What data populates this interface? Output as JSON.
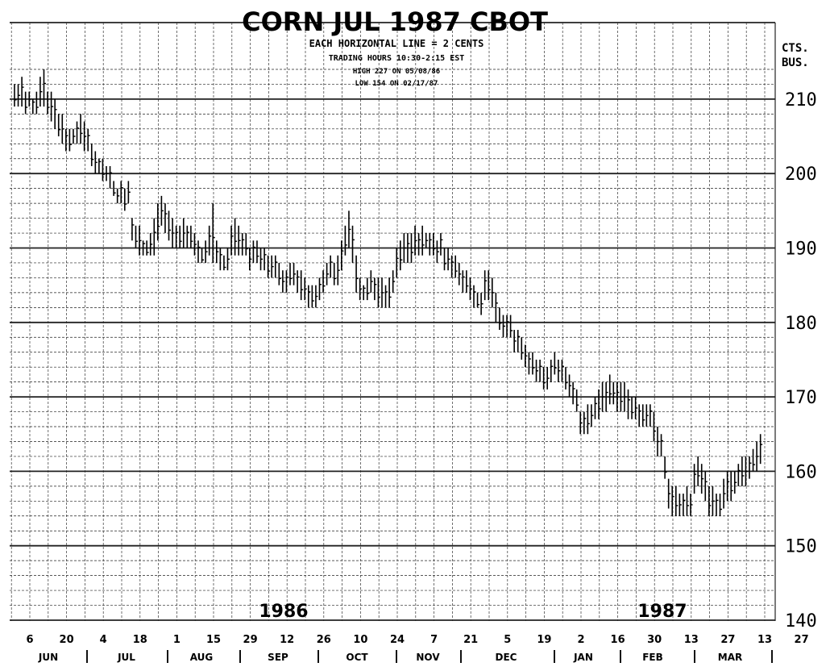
{
  "chart_data": {
    "type": "bar",
    "style": "ohlc-price-bars",
    "title": "CORN JUL 1987 CBOT",
    "info_lines": [
      "EACH HORIZONTAL LINE = 2 CENTS",
      "TRADING HOURS   10:30-2:15 EST",
      "HIGH 227        ON 05/08/86",
      "LOW  154        ON 02/17/87"
    ],
    "ylabel": "CTS. BUS.",
    "ylim": [
      140,
      215
    ],
    "yticks": [
      140,
      150,
      160,
      170,
      180,
      190,
      200,
      210
    ],
    "grid": true,
    "grid_minor_step": 2,
    "x_tick_labels": [
      "6",
      "20",
      "4",
      "18",
      "1",
      "15",
      "29",
      "12",
      "26",
      "10",
      "24",
      "7",
      "21",
      "5",
      "19",
      "2",
      "16",
      "30",
      "13",
      "27",
      "13",
      "27"
    ],
    "months": [
      "JUN",
      "JUL",
      "AUG",
      "SEP",
      "OCT",
      "NOV",
      "DEC",
      "JAN",
      "FEB",
      "MAR"
    ],
    "year_labels": [
      "1986",
      "1987"
    ],
    "series": [
      {
        "x_start": "1986-06-02",
        "daily_highs": [
          212,
          212,
          213,
          211,
          211,
          210,
          211,
          213,
          214,
          211,
          211,
          210,
          208,
          208,
          206,
          206,
          206,
          207,
          208,
          207,
          206,
          204,
          203,
          202,
          202,
          201,
          201,
          199,
          198,
          199,
          198,
          199,
          194,
          193,
          193,
          191,
          191,
          192,
          194,
          196,
          197,
          196,
          195,
          194,
          193,
          193,
          194,
          193,
          193,
          192,
          191,
          190,
          191,
          193,
          196,
          191,
          190,
          189,
          190,
          193,
          194,
          193,
          192,
          192,
          190,
          191,
          191,
          190,
          190,
          189,
          189,
          189,
          188,
          187,
          187,
          188,
          188,
          187,
          187,
          186,
          185,
          185,
          185,
          186,
          187,
          188,
          189,
          188,
          189,
          191,
          193,
          195,
          193,
          189,
          186,
          185,
          186,
          187,
          186,
          186,
          186,
          185,
          186,
          187,
          190,
          191,
          192,
          192,
          192,
          193,
          192,
          193,
          192,
          192,
          192,
          191,
          192,
          190,
          190,
          189,
          189,
          188,
          187,
          187,
          186,
          185,
          184,
          184,
          187,
          187,
          186,
          184,
          182,
          181,
          181,
          181,
          179,
          179,
          178,
          177,
          176,
          176,
          175,
          175,
          174,
          174,
          175,
          176,
          175,
          175,
          174,
          173,
          172,
          171,
          168,
          168,
          169,
          169,
          170,
          171,
          172,
          172,
          173,
          172,
          172,
          172,
          172,
          171,
          170,
          170,
          169,
          169,
          169,
          169,
          168,
          166,
          165,
          162,
          159,
          158,
          158,
          157,
          157,
          158,
          157,
          161,
          162,
          161,
          160,
          158,
          158,
          157,
          157,
          159,
          160,
          160,
          160,
          161,
          162,
          162,
          162,
          163,
          164,
          165
        ],
        "daily_lows": [
          209,
          209,
          209,
          208,
          209,
          208,
          208,
          209,
          209,
          208,
          207,
          206,
          205,
          204,
          203,
          203,
          204,
          204,
          204,
          203,
          203,
          201,
          200,
          200,
          199,
          199,
          198,
          197,
          196,
          196,
          195,
          196,
          191,
          190,
          189,
          189,
          189,
          189,
          189,
          191,
          193,
          192,
          191,
          190,
          190,
          190,
          190,
          190,
          190,
          189,
          188,
          188,
          188,
          189,
          188,
          188,
          187,
          187,
          187,
          189,
          189,
          189,
          189,
          189,
          187,
          188,
          188,
          187,
          187,
          186,
          186,
          186,
          185,
          184,
          184,
          185,
          185,
          184,
          183,
          183,
          182,
          182,
          182,
          183,
          184,
          185,
          186,
          185,
          185,
          187,
          189,
          190,
          188,
          184,
          183,
          183,
          183,
          184,
          183,
          182,
          182,
          182,
          182,
          184,
          186,
          187,
          188,
          188,
          188,
          189,
          189,
          189,
          190,
          189,
          189,
          188,
          189,
          187,
          187,
          186,
          186,
          185,
          184,
          184,
          183,
          182,
          182,
          181,
          183,
          183,
          182,
          180,
          179,
          178,
          178,
          178,
          176,
          176,
          175,
          174,
          173,
          173,
          172,
          172,
          171,
          171,
          172,
          173,
          172,
          172,
          171,
          170,
          169,
          168,
          165,
          165,
          165,
          166,
          167,
          167,
          168,
          168,
          169,
          169,
          168,
          168,
          168,
          167,
          167,
          167,
          166,
          166,
          166,
          166,
          164,
          162,
          162,
          159,
          155,
          154,
          154,
          154,
          154,
          154,
          154,
          157,
          158,
          157,
          156,
          154,
          154,
          154,
          154,
          155,
          156,
          156,
          157,
          158,
          158,
          158,
          159,
          160,
          160,
          161
        ]
      }
    ]
  }
}
